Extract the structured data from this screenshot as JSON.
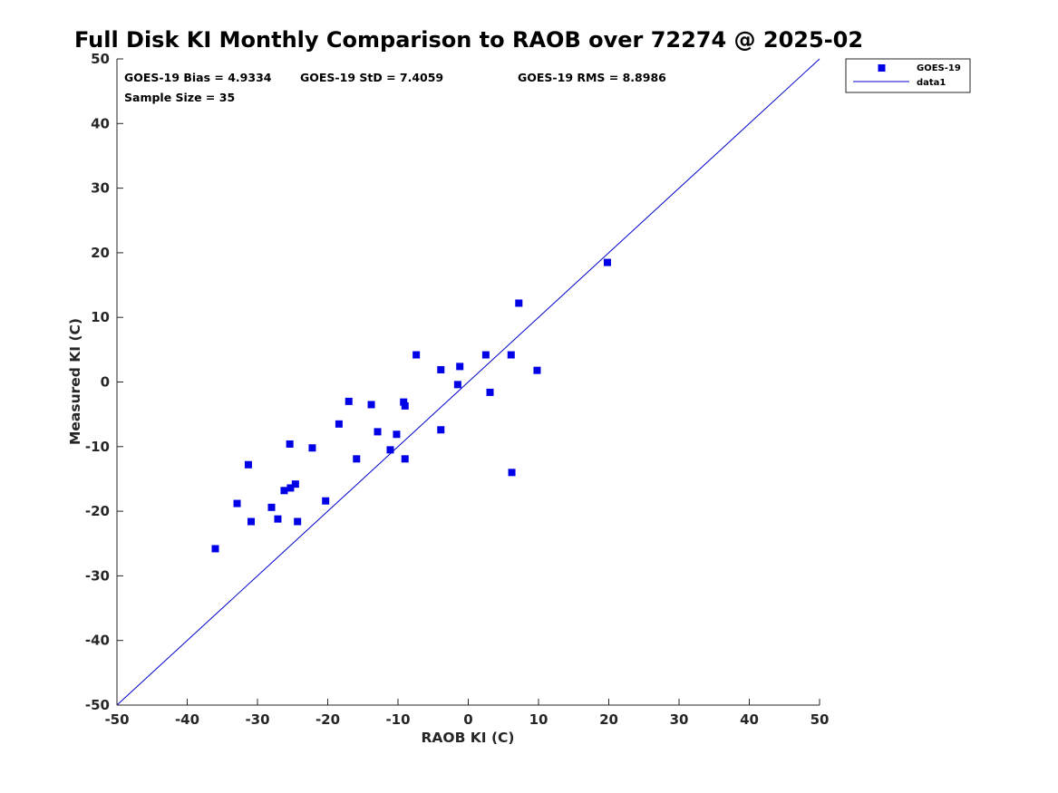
{
  "chart_data": {
    "type": "scatter",
    "title": "Full Disk KI Monthly Comparison to RAOB over 72274 @ 2025-02",
    "xlabel": "RAOB KI (C)",
    "ylabel": "Measured KI (C)",
    "xlim": [
      -50,
      50
    ],
    "ylim": [
      -50,
      50
    ],
    "xticks": [
      "-50",
      "-40",
      "-30",
      "-20",
      "-10",
      "0",
      "10",
      "20",
      "30",
      "40",
      "50"
    ],
    "yticks": [
      "-50",
      "-40",
      "-30",
      "-20",
      "-10",
      "0",
      "10",
      "20",
      "30",
      "40",
      "50"
    ],
    "stats": {
      "bias": "GOES-19 Bias = 4.9334",
      "std": "GOES-19 StD = 7.4059",
      "rms": "GOES-19 RMS = 8.8986",
      "sample": "Sample Size = 35"
    },
    "legend": {
      "position": "top-right",
      "entries": [
        "GOES-19",
        "data1"
      ]
    },
    "colors": {
      "marker": "#0000e6",
      "line": "#0000cc",
      "axis": "#262626"
    },
    "series": [
      {
        "name": "GOES-19",
        "points": [
          [
            -36.0,
            -25.8
          ],
          [
            -32.9,
            -18.8
          ],
          [
            -31.3,
            -12.8
          ],
          [
            -30.9,
            -21.6
          ],
          [
            -28.0,
            -19.4
          ],
          [
            -27.1,
            -21.2
          ],
          [
            -26.2,
            -16.8
          ],
          [
            -25.4,
            -9.6
          ],
          [
            -25.3,
            -16.4
          ],
          [
            -24.6,
            -15.8
          ],
          [
            -24.3,
            -21.6
          ],
          [
            -22.2,
            -10.2
          ],
          [
            -20.3,
            -18.4
          ],
          [
            -18.4,
            -6.5
          ],
          [
            -17.0,
            -3.0
          ],
          [
            -15.9,
            -11.9
          ],
          [
            -13.8,
            -3.5
          ],
          [
            -12.9,
            -7.7
          ],
          [
            -11.1,
            -10.5
          ],
          [
            -10.2,
            -8.1
          ],
          [
            -9.2,
            -3.1
          ],
          [
            -9.0,
            -3.7
          ],
          [
            -9.0,
            -11.9
          ],
          [
            -7.4,
            4.2
          ],
          [
            -3.9,
            1.9
          ],
          [
            -3.9,
            -7.4
          ],
          [
            -1.5,
            -0.4
          ],
          [
            -1.2,
            2.4
          ],
          [
            2.5,
            4.2
          ],
          [
            3.1,
            -1.6
          ],
          [
            6.1,
            4.2
          ],
          [
            6.2,
            -14.0
          ],
          [
            7.2,
            12.2
          ],
          [
            9.8,
            1.8
          ],
          [
            19.8,
            18.5
          ]
        ]
      },
      {
        "name": "data1",
        "points": [
          [
            -50,
            -50
          ],
          [
            50,
            50
          ]
        ]
      }
    ]
  }
}
